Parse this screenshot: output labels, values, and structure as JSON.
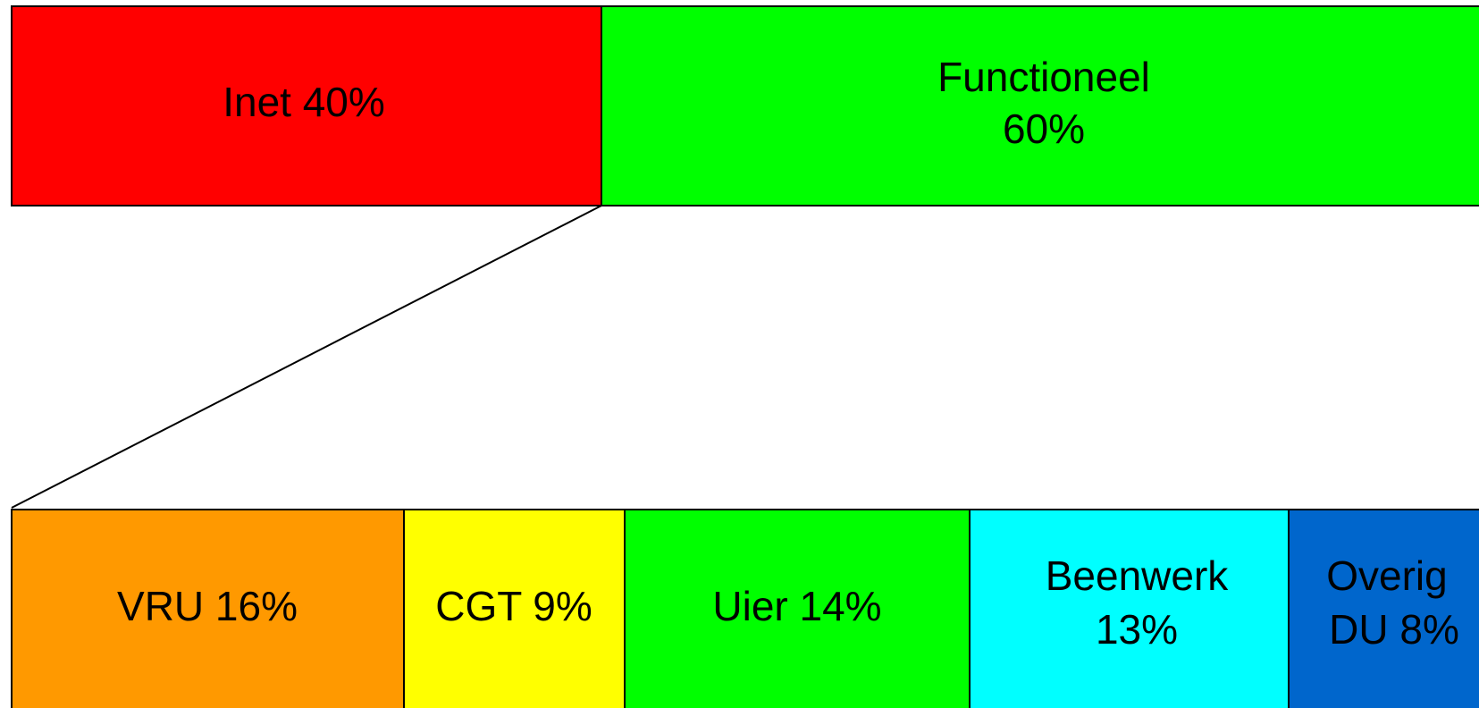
{
  "top": [
    {
      "label": [
        "Inet 40%"
      ],
      "color": "#ff0000"
    },
    {
      "label": [
        "Functioneel",
        "60%"
      ],
      "color": "#00ff00"
    }
  ],
  "bottom": [
    {
      "label": [
        "VRU 16%"
      ],
      "color": "#ff9900"
    },
    {
      "label": [
        "CGT 9%"
      ],
      "color": "#ffff00"
    },
    {
      "label": [
        "Uier 14%"
      ],
      "color": "#00ff00"
    },
    {
      "label": [
        "Beenwerk",
        "13%"
      ],
      "color": "#00ffff"
    },
    {
      "label": [
        "Overig",
        "DU 8%"
      ],
      "color": "#0066cc"
    }
  ]
}
